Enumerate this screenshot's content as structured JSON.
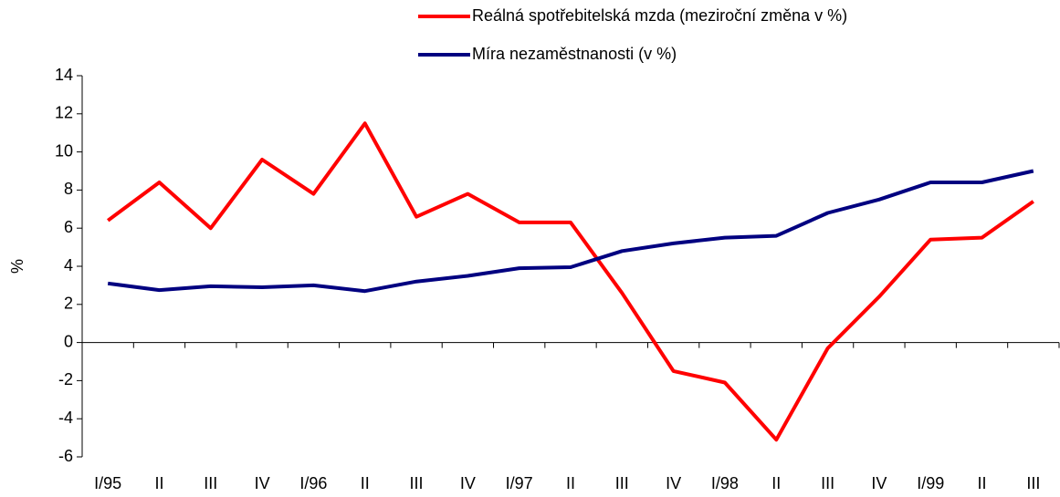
{
  "chart_data": {
    "type": "line",
    "y_label": "%",
    "categories": [
      "I/95",
      "II",
      "III",
      "IV",
      "I/96",
      "II",
      "III",
      "IV",
      "I/97",
      "II",
      "III",
      "IV",
      "I/98",
      "II",
      "III",
      "IV",
      "I/99",
      "II",
      "III"
    ],
    "series": [
      {
        "name": "Reálná spotřebitelská mzda (meziroční změna v %)",
        "color": "#ff0000",
        "values": [
          6.4,
          8.4,
          6.0,
          9.6,
          7.8,
          11.5,
          6.6,
          7.8,
          6.3,
          6.3,
          2.6,
          -1.5,
          -2.1,
          -5.1,
          -0.3,
          2.4,
          5.4,
          5.5,
          7.4
        ]
      },
      {
        "name": "Míra nezaměstnanosti (v %)",
        "color": "#000080",
        "values": [
          3.1,
          2.75,
          2.95,
          2.9,
          3.0,
          2.7,
          3.2,
          3.5,
          3.9,
          3.95,
          4.8,
          5.2,
          5.5,
          5.6,
          6.8,
          7.5,
          8.4,
          8.4,
          9.0
        ]
      }
    ],
    "ylim": [
      -6,
      14
    ],
    "yticks": [
      -6,
      -4,
      -2,
      0,
      2,
      4,
      6,
      8,
      10,
      12,
      14
    ]
  }
}
